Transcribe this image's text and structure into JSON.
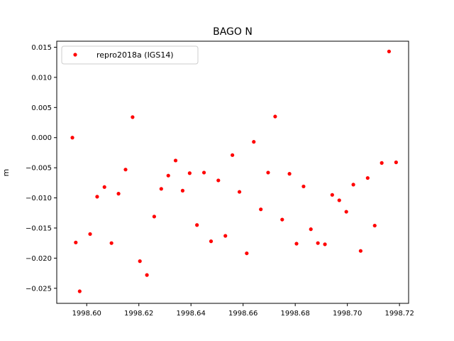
{
  "chart_data": {
    "type": "scatter",
    "title": "BAGO N",
    "xlabel": "",
    "ylabel": "m",
    "xlim": [
      1998.5885,
      1998.7235
    ],
    "ylim": [
      -0.0275,
      0.016
    ],
    "x_ticks": [
      1998.6,
      1998.62,
      1998.64,
      1998.66,
      1998.68,
      1998.7,
      1998.72
    ],
    "x_tick_labels": [
      "1998.60",
      "1998.62",
      "1998.64",
      "1998.66",
      "1998.68",
      "1998.70",
      "1998.72"
    ],
    "y_ticks": [
      -0.025,
      -0.02,
      -0.015,
      -0.01,
      -0.005,
      0.0,
      0.005,
      0.01,
      0.015
    ],
    "y_tick_labels": [
      "−0.025",
      "−0.020",
      "−0.015",
      "−0.010",
      "−0.005",
      "0.000",
      "0.005",
      "0.010",
      "0.015"
    ],
    "grid": false,
    "legend_position": "top-left",
    "series": [
      {
        "name": "repro2018a (IGS14)",
        "color": "#ff0000",
        "marker": "circle",
        "x": [
          1998.5945,
          1998.5958,
          1998.5973,
          1998.6013,
          1998.604,
          1998.6068,
          1998.6095,
          1998.6122,
          1998.6149,
          1998.6176,
          1998.6204,
          1998.6231,
          1998.6259,
          1998.6286,
          1998.6313,
          1998.6341,
          1998.6368,
          1998.6395,
          1998.6423,
          1998.645,
          1998.6477,
          1998.6505,
          1998.6532,
          1998.6559,
          1998.6586,
          1998.6614,
          1998.6641,
          1998.6668,
          1998.6696,
          1998.6723,
          1998.675,
          1998.6778,
          1998.6805,
          1998.6832,
          1998.686,
          1998.6887,
          1998.6914,
          1998.6942,
          1998.6969,
          1998.6996,
          1998.7023,
          1998.7051,
          1998.7078,
          1998.7105,
          1998.7132,
          1998.716,
          1998.7187
        ],
        "y": [
          0.0,
          -0.0174,
          -0.0255,
          -0.016,
          -0.0098,
          -0.0082,
          -0.0175,
          -0.0093,
          -0.0053,
          0.0034,
          -0.0205,
          -0.0228,
          -0.0131,
          -0.0085,
          -0.0063,
          -0.0038,
          -0.0088,
          -0.0059,
          -0.0145,
          -0.0058,
          -0.0172,
          -0.0071,
          -0.0163,
          -0.0029,
          -0.009,
          -0.0192,
          -0.0007,
          -0.0119,
          -0.0058,
          0.0035,
          -0.0136,
          -0.006,
          -0.0176,
          -0.0081,
          -0.0152,
          -0.0175,
          -0.0177,
          -0.0095,
          -0.0104,
          -0.0123,
          -0.0078,
          -0.0188,
          -0.0067,
          -0.0146,
          -0.0042,
          0.0143,
          -0.0041
        ]
      }
    ]
  }
}
